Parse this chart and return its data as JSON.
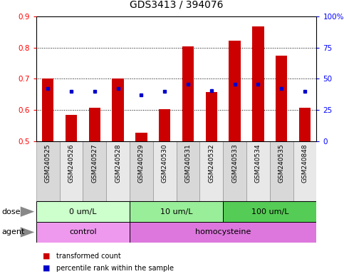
{
  "title": "GDS3413 / 394076",
  "samples": [
    "GSM240525",
    "GSM240526",
    "GSM240527",
    "GSM240528",
    "GSM240529",
    "GSM240530",
    "GSM240531",
    "GSM240532",
    "GSM240533",
    "GSM240534",
    "GSM240535",
    "GSM240848"
  ],
  "transformed_count": [
    0.7,
    0.585,
    0.608,
    0.7,
    0.527,
    0.603,
    0.803,
    0.658,
    0.822,
    0.868,
    0.775,
    0.608
  ],
  "percentile_rank": [
    0.67,
    0.66,
    0.66,
    0.668,
    0.648,
    0.66,
    0.682,
    0.662,
    0.682,
    0.682,
    0.67,
    0.66
  ],
  "bar_bottom": 0.5,
  "ylim_left": [
    0.5,
    0.9
  ],
  "ylim_right": [
    0,
    100
  ],
  "y_ticks_left": [
    0.5,
    0.6,
    0.7,
    0.8,
    0.9
  ],
  "y_ticks_right": [
    0,
    25,
    50,
    75,
    100
  ],
  "ytick_labels_left": [
    "0.5",
    "0.6",
    "0.7",
    "0.8",
    "0.9"
  ],
  "ytick_labels_right": [
    "0",
    "25",
    "50",
    "75",
    "100%"
  ],
  "bar_color": "#cc0000",
  "dot_color": "#0000cc",
  "dose_groups": [
    {
      "label": "0 um/L",
      "start": 0,
      "end": 4,
      "color": "#ccffcc"
    },
    {
      "label": "10 um/L",
      "start": 4,
      "end": 8,
      "color": "#99ee99"
    },
    {
      "label": "100 um/L",
      "start": 8,
      "end": 12,
      "color": "#55cc55"
    }
  ],
  "agent_groups": [
    {
      "label": "control",
      "start": 0,
      "end": 4,
      "color": "#ee99ee"
    },
    {
      "label": "homocysteine",
      "start": 4,
      "end": 12,
      "color": "#dd77dd"
    }
  ],
  "dose_label": "dose",
  "agent_label": "agent",
  "legend_bar_label": "transformed count",
  "legend_dot_label": "percentile rank within the sample",
  "sample_box_colors": [
    "#d8d8d8",
    "#e8e8e8"
  ],
  "title_fontsize": 10,
  "tick_fontsize": 7.5,
  "sample_label_fontsize": 6.5,
  "row_label_fontsize": 8,
  "legend_fontsize": 7,
  "bar_width": 0.5
}
